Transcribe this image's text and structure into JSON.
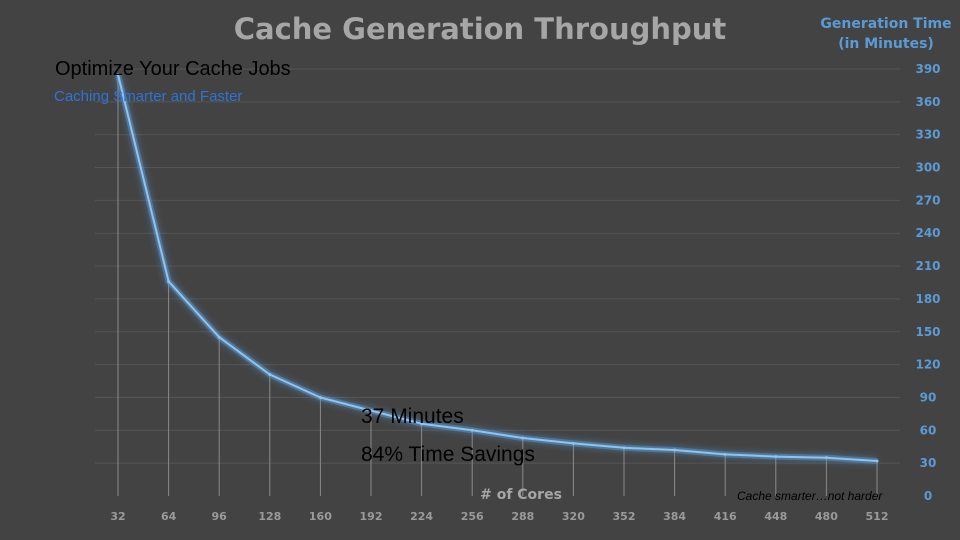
{
  "slide": {
    "heading": "Optimize Your Cache Jobs",
    "subheading": "Caching Smarter and Faster",
    "callout_minutes": "37 Minutes",
    "callout_savings": "84% Time Savings",
    "footnote": "Cache smarter…not harder"
  },
  "colors": {
    "background": "#434343",
    "line": "#5b9bd5",
    "axis_text": "#5b9bd5",
    "title_text": "#a6a6a6"
  },
  "chart_data": {
    "type": "line",
    "title": "Cache Generation Throughput",
    "ylabel": "Generation Time\n(in Minutes)",
    "ylabel_lines": [
      "Generation Time",
      "(in Minutes)"
    ],
    "xlabel": "# of Cores",
    "x": [
      32,
      64,
      96,
      128,
      160,
      192,
      224,
      256,
      288,
      320,
      352,
      384,
      416,
      448,
      480,
      512
    ],
    "series": [
      {
        "name": "",
        "values": [
          385,
          196,
          145,
          111,
          90,
          78,
          66,
          60,
          53,
          48,
          44,
          42,
          38,
          36,
          35,
          32
        ]
      }
    ],
    "y_ticks": [
      0,
      30,
      60,
      90,
      120,
      150,
      180,
      210,
      240,
      270,
      300,
      330,
      360,
      390
    ],
    "ylim": [
      0,
      390
    ],
    "y_axis_position": "right",
    "drop_lines": true,
    "grid": true,
    "legend": "none"
  }
}
